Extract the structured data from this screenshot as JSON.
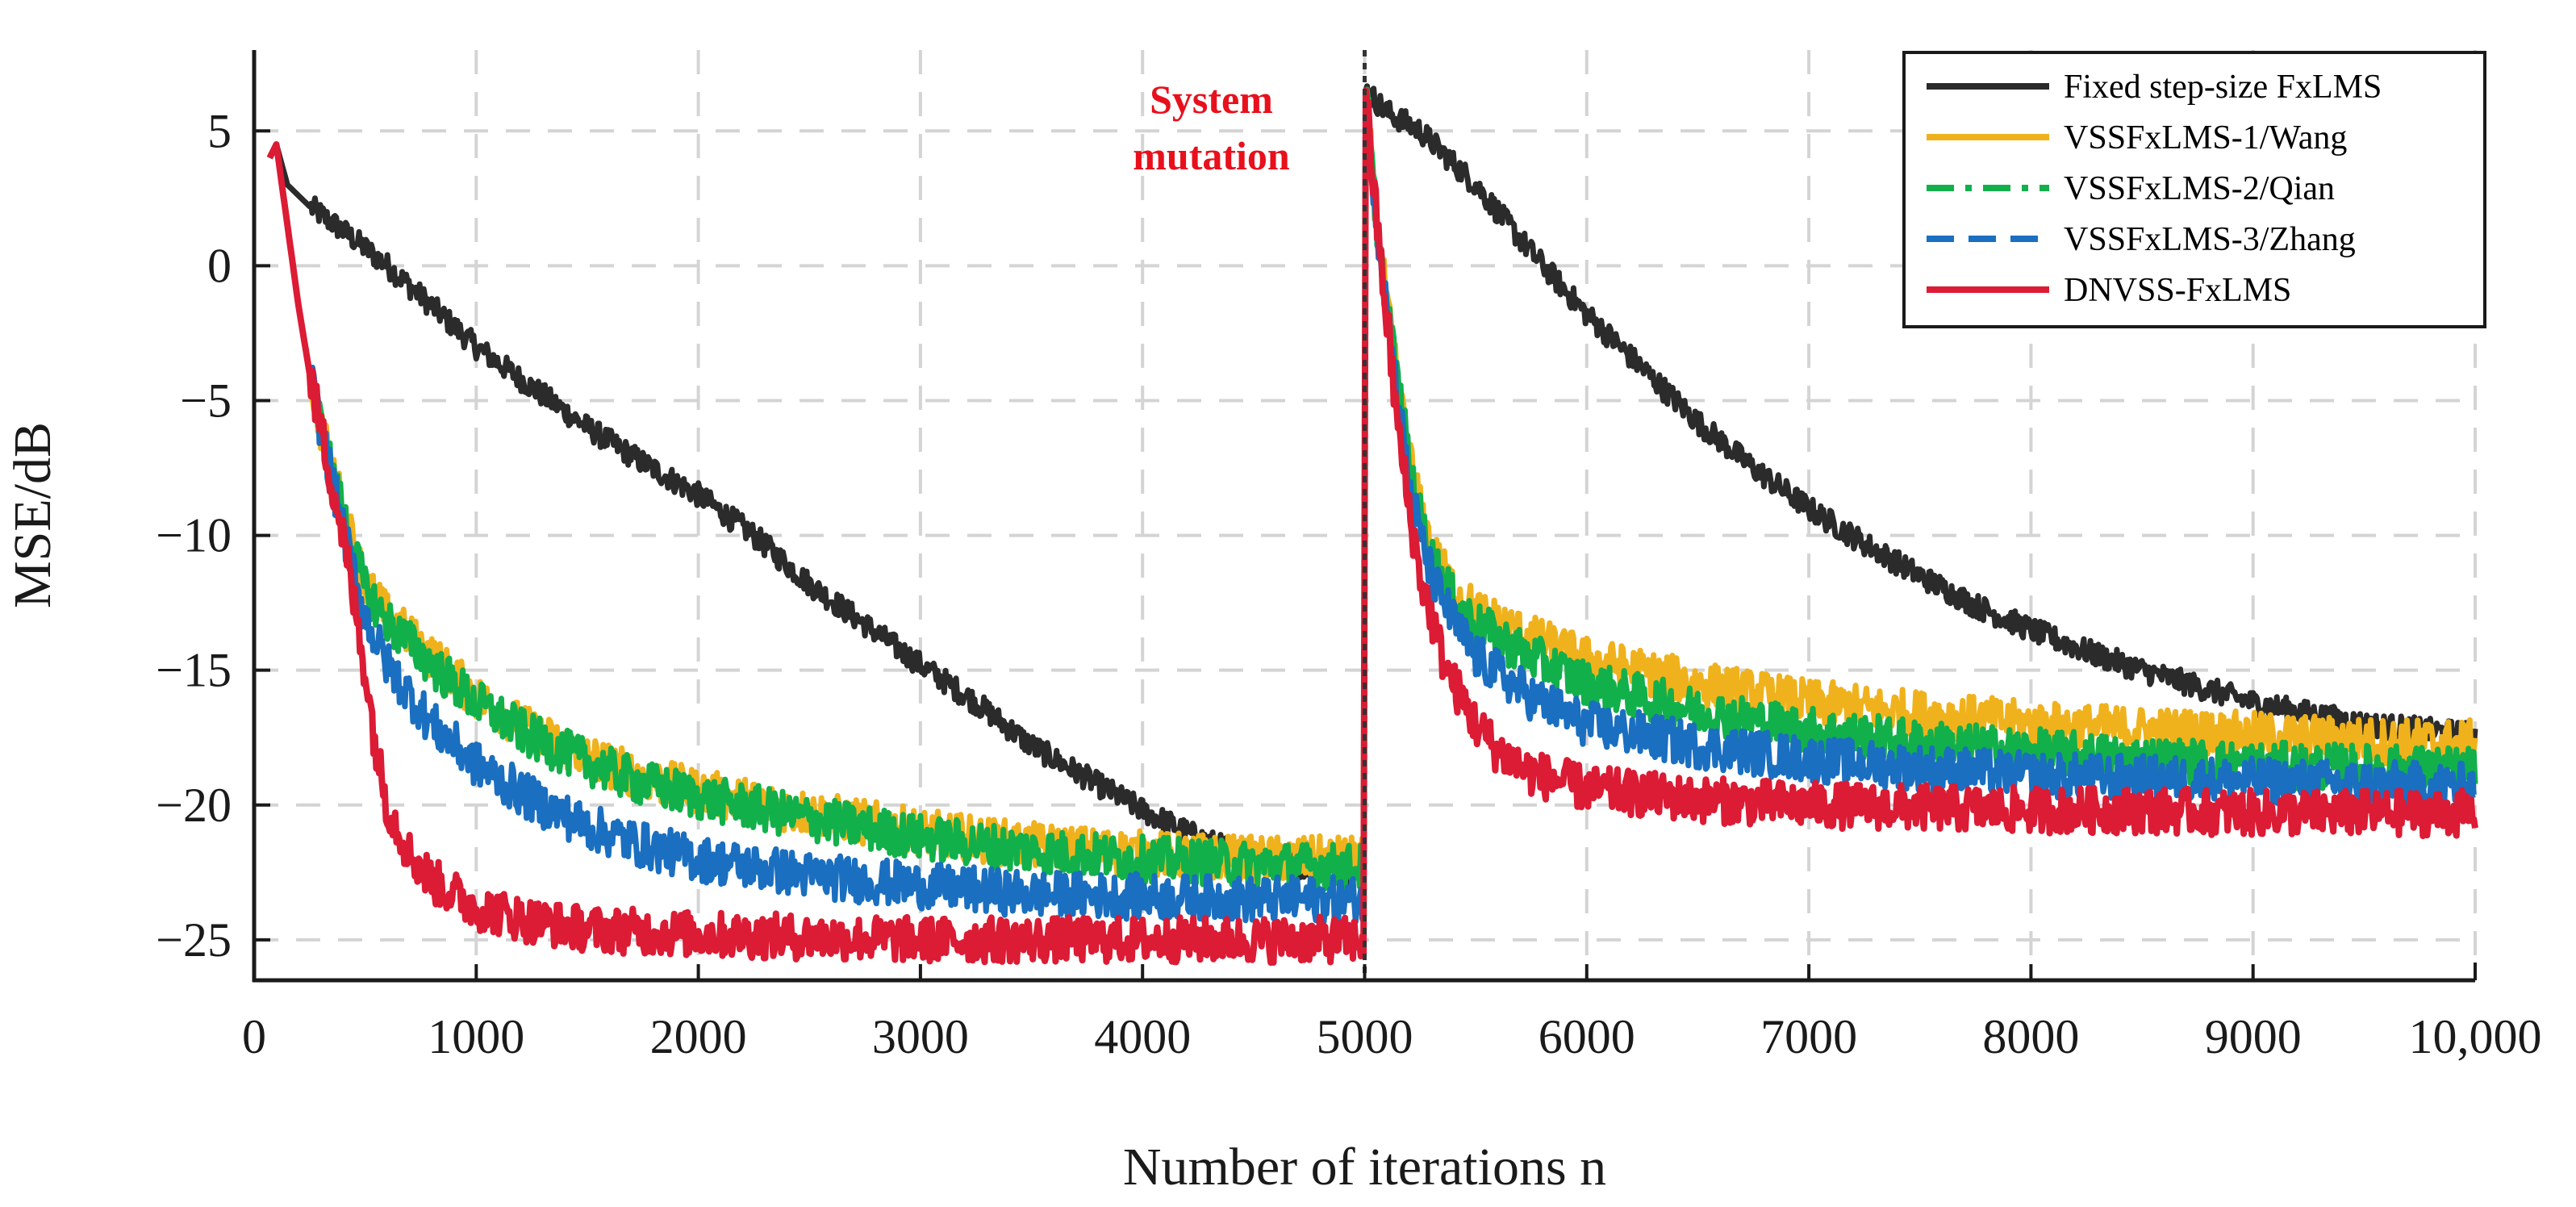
{
  "chart_data": {
    "type": "line",
    "title": "",
    "xlabel": "Number of iterations n",
    "ylabel": "MSE/dB",
    "xlim": [
      0,
      10000
    ],
    "ylim": [
      -26.5,
      8
    ],
    "x_ticks": [
      0,
      1000,
      2000,
      3000,
      4000,
      5000,
      6000,
      7000,
      8000,
      9000,
      10000
    ],
    "x_tick_labels": [
      "0",
      "1000",
      "2000",
      "3000",
      "4000",
      "5000",
      "6000",
      "7000",
      "8000",
      "9000",
      "10,000"
    ],
    "y_ticks": [
      5,
      0,
      -5,
      -10,
      -15,
      -20,
      -25
    ],
    "y_tick_labels": [
      "5",
      "0",
      "−5",
      "−10",
      "−15",
      "−20",
      "−25"
    ],
    "grid": true,
    "legend_position": "top-right",
    "annotation": {
      "lines": [
        "System",
        "mutation"
      ],
      "x": 5000,
      "color": "#e8101c"
    },
    "series": [
      {
        "name": "Fixed step-size FxLMS",
        "color": "#2b2b2b",
        "style": "solid",
        "x": [
          70,
          100,
          150,
          250,
          400,
          600,
          800,
          1000,
          1250,
          1500,
          1750,
          2000,
          2250,
          2500,
          2750,
          3000,
          3250,
          3500,
          3750,
          4000,
          4250,
          4500,
          4750,
          4995,
          5005,
          5100,
          5250,
          5500,
          5750,
          6000,
          6250,
          6500,
          6750,
          7000,
          7250,
          7500,
          7750,
          8000,
          8250,
          8500,
          8750,
          9000,
          9250,
          9500,
          9750,
          10000
        ],
        "values": [
          4.0,
          4.5,
          3.0,
          2.2,
          1.3,
          0.0,
          -1.5,
          -3.0,
          -4.5,
          -6.0,
          -7.3,
          -8.5,
          -10.0,
          -11.8,
          -13.3,
          -14.8,
          -16.2,
          -17.8,
          -19.0,
          -20.2,
          -21.2,
          -22.0,
          -22.3,
          -22.5,
          6.5,
          5.7,
          5.0,
          3.0,
          0.5,
          -1.8,
          -3.8,
          -5.8,
          -7.5,
          -9.0,
          -10.3,
          -11.5,
          -12.6,
          -13.5,
          -14.3,
          -15.0,
          -15.6,
          -16.2,
          -16.6,
          -17.0,
          -17.2,
          -17.4
        ]
      },
      {
        "name": "VSSFxLMS-1/Wang",
        "color": "#f0b21c",
        "style": "solid",
        "x": [
          70,
          100,
          150,
          200,
          250,
          300,
          400,
          500,
          600,
          800,
          1000,
          1250,
          1500,
          1750,
          2000,
          2500,
          3000,
          3500,
          4000,
          4500,
          4995,
          5005,
          5050,
          5100,
          5150,
          5200,
          5250,
          5300,
          5400,
          5500,
          5750,
          6000,
          6500,
          7000,
          7500,
          8000,
          8500,
          9000,
          9500,
          10000
        ],
        "values": [
          4.0,
          4.5,
          1.5,
          -1.5,
          -4.0,
          -6.0,
          -9.0,
          -11.8,
          -13.0,
          -14.5,
          -16.0,
          -17.3,
          -18.2,
          -19.0,
          -19.5,
          -20.3,
          -21.0,
          -21.5,
          -21.8,
          -22.0,
          -22.0,
          6.5,
          2.0,
          -1.5,
          -4.5,
          -7.0,
          -9.0,
          -10.5,
          -12.0,
          -12.8,
          -13.8,
          -14.6,
          -15.5,
          -16.2,
          -16.6,
          -17.0,
          -17.2,
          -17.4,
          -17.6,
          -17.7
        ]
      },
      {
        "name": "VSSFxLMS-2/Qian",
        "color": "#12b04b",
        "style": "dashdot",
        "x": [
          70,
          100,
          150,
          200,
          250,
          300,
          400,
          500,
          600,
          800,
          1000,
          1250,
          1500,
          1750,
          2000,
          2500,
          3000,
          3500,
          4000,
          4500,
          4995,
          5005,
          5050,
          5100,
          5150,
          5200,
          5250,
          5300,
          5400,
          5500,
          5750,
          6000,
          6500,
          7000,
          7500,
          8000,
          8500,
          9000,
          9500,
          10000
        ],
        "values": [
          4.0,
          4.5,
          1.5,
          -1.5,
          -4.0,
          -6.0,
          -9.2,
          -12.0,
          -13.2,
          -14.8,
          -16.2,
          -17.5,
          -18.4,
          -19.2,
          -19.7,
          -20.5,
          -21.2,
          -21.7,
          -22.0,
          -22.2,
          -22.3,
          6.5,
          2.0,
          -1.5,
          -4.5,
          -7.2,
          -9.3,
          -10.8,
          -12.4,
          -13.3,
          -14.5,
          -15.5,
          -16.5,
          -17.2,
          -17.7,
          -18.0,
          -18.3,
          -18.5,
          -18.6,
          -18.7
        ]
      },
      {
        "name": "VSSFxLMS-3/Zhang",
        "color": "#1a6fc0",
        "style": "dashed",
        "x": [
          70,
          100,
          150,
          200,
          250,
          300,
          400,
          500,
          600,
          800,
          1000,
          1250,
          1500,
          1750,
          2000,
          2500,
          3000,
          3500,
          4000,
          4500,
          4995,
          5005,
          5050,
          5100,
          5150,
          5200,
          5250,
          5300,
          5400,
          5500,
          5750,
          6000,
          6500,
          7000,
          7500,
          8000,
          8500,
          9000,
          9500,
          10000
        ],
        "values": [
          4.0,
          4.5,
          1.5,
          -1.5,
          -4.0,
          -6.0,
          -9.8,
          -13.0,
          -14.8,
          -17.0,
          -18.5,
          -19.8,
          -20.8,
          -21.5,
          -22.0,
          -22.6,
          -23.0,
          -23.3,
          -23.4,
          -23.5,
          -23.5,
          6.5,
          2.0,
          -1.5,
          -5.0,
          -8.0,
          -10.0,
          -11.5,
          -13.2,
          -14.5,
          -16.0,
          -17.0,
          -17.8,
          -18.3,
          -18.6,
          -18.9,
          -19.0,
          -19.1,
          -19.2,
          -19.3
        ]
      },
      {
        "name": "DNVSS-FxLMS",
        "color": "#dc1b34",
        "style": "solid",
        "x": [
          70,
          100,
          150,
          200,
          250,
          300,
          400,
          500,
          550,
          600,
          700,
          800,
          1000,
          1250,
          1500,
          2000,
          2500,
          3000,
          3500,
          4000,
          4500,
          4995,
          5005,
          5050,
          5100,
          5150,
          5200,
          5250,
          5300,
          5350,
          5400,
          5500,
          5600,
          5750,
          6000,
          6500,
          7000,
          7500,
          8000,
          8500,
          9000,
          9500,
          10000
        ],
        "values": [
          4.0,
          4.5,
          1.5,
          -1.5,
          -4.0,
          -6.0,
          -10.0,
          -15.0,
          -18.0,
          -20.0,
          -21.8,
          -22.8,
          -23.8,
          -24.3,
          -24.6,
          -24.8,
          -24.9,
          -25.0,
          -25.0,
          -25.0,
          -25.0,
          -25.0,
          6.5,
          2.0,
          -2.0,
          -6.0,
          -9.0,
          -11.5,
          -13.0,
          -14.5,
          -15.5,
          -17.0,
          -18.0,
          -18.8,
          -19.4,
          -19.8,
          -20.0,
          -20.1,
          -20.2,
          -20.2,
          -20.3,
          -20.3,
          -20.3
        ]
      }
    ]
  }
}
